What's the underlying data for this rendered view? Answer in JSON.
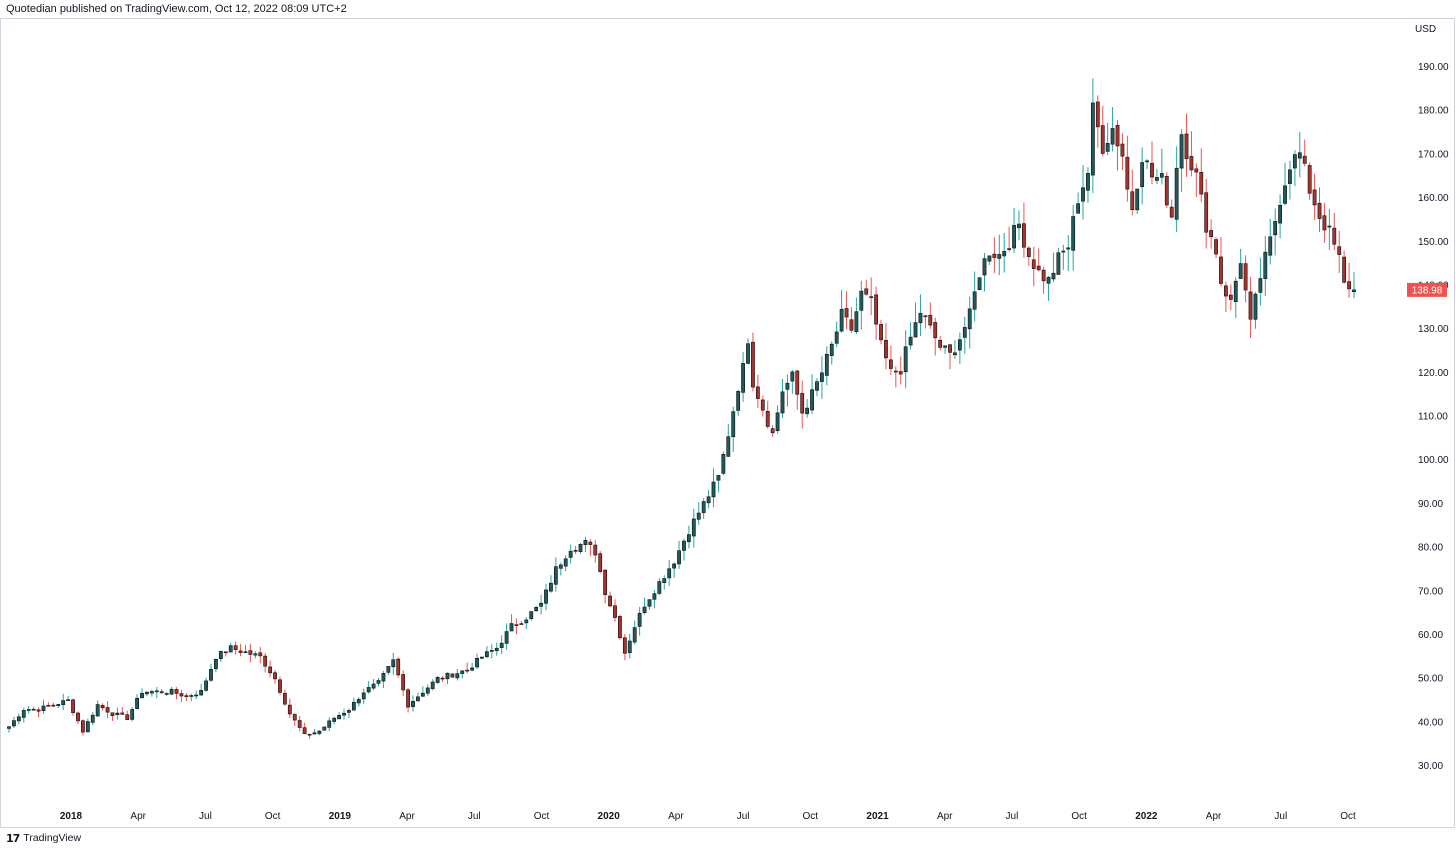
{
  "header": {
    "published_text": "Quotedian published on TradingView.com, Oct 12, 2022 08:09 UTC+2"
  },
  "footer": {
    "logo_icon": "tradingview-logo-icon",
    "logo_glyph": "17",
    "brand": "TradingView"
  },
  "colors": {
    "up": "#26a69a",
    "up_body": "#1e5a5e",
    "down": "#ef5350",
    "down_body": "#a8322d",
    "grid": "#ffffff",
    "axis_text": "#131722",
    "last_price_bg": "#ef5350"
  },
  "chart_data": {
    "type": "candlestick",
    "timeframe": "weekly",
    "currency": "USD",
    "y_axis_label": "USD",
    "y_ticks": [
      30,
      40,
      50,
      60,
      70,
      80,
      90,
      100,
      110,
      120,
      130,
      140,
      150,
      160,
      170,
      180,
      190
    ],
    "y_tick_labels": [
      "30.00",
      "40.00",
      "50.00",
      "60.00",
      "70.00",
      "80.00",
      "90.00",
      "100.00",
      "110.00",
      "120.00",
      "130.00",
      "140.00",
      "150.00",
      "160.00",
      "170.00",
      "180.00",
      "190.00"
    ],
    "ylim": [
      25,
      195
    ],
    "x_ticks": [
      {
        "label": "2018",
        "year": true,
        "w": 8
      },
      {
        "label": "Apr",
        "year": false,
        "w": 21
      },
      {
        "label": "Jul",
        "year": false,
        "w": 34
      },
      {
        "label": "Oct",
        "year": false,
        "w": 47
      },
      {
        "label": "2019",
        "year": true,
        "w": 60
      },
      {
        "label": "Apr",
        "year": false,
        "w": 73
      },
      {
        "label": "Jul",
        "year": false,
        "w": 86
      },
      {
        "label": "Oct",
        "year": false,
        "w": 99
      },
      {
        "label": "2020",
        "year": true,
        "w": 112
      },
      {
        "label": "Apr",
        "year": false,
        "w": 125
      },
      {
        "label": "Jul",
        "year": false,
        "w": 138
      },
      {
        "label": "Oct",
        "year": false,
        "w": 151
      },
      {
        "label": "2021",
        "year": true,
        "w": 164
      },
      {
        "label": "Apr",
        "year": false,
        "w": 177
      },
      {
        "label": "Jul",
        "year": false,
        "w": 190
      },
      {
        "label": "Oct",
        "year": false,
        "w": 203
      },
      {
        "label": "2022",
        "year": true,
        "w": 216
      },
      {
        "label": "Apr",
        "year": false,
        "w": 229
      },
      {
        "label": "Jul",
        "year": false,
        "w": 242
      },
      {
        "label": "Oct",
        "year": false,
        "w": 255
      }
    ],
    "close_path": [
      [
        0,
        39
      ],
      [
        3,
        43
      ],
      [
        6,
        43
      ],
      [
        9,
        44
      ],
      [
        12,
        45
      ],
      [
        15,
        38
      ],
      [
        18,
        44
      ],
      [
        21,
        42
      ],
      [
        24,
        41
      ],
      [
        27,
        47
      ],
      [
        30,
        47
      ],
      [
        33,
        47
      ],
      [
        36,
        46
      ],
      [
        39,
        47
      ],
      [
        42,
        55
      ],
      [
        45,
        57
      ],
      [
        48,
        56
      ],
      [
        51,
        55
      ],
      [
        54,
        50
      ],
      [
        57,
        42
      ],
      [
        60,
        37
      ],
      [
        63,
        38
      ],
      [
        66,
        41
      ],
      [
        69,
        43
      ],
      [
        72,
        47
      ],
      [
        75,
        49
      ],
      [
        78,
        54
      ],
      [
        81,
        44
      ],
      [
        84,
        47
      ],
      [
        87,
        50
      ],
      [
        90,
        51
      ],
      [
        93,
        52
      ],
      [
        96,
        55
      ],
      [
        99,
        57
      ],
      [
        102,
        62
      ],
      [
        105,
        64
      ],
      [
        108,
        67
      ],
      [
        111,
        75
      ],
      [
        114,
        80
      ],
      [
        117,
        81
      ],
      [
        119,
        79
      ],
      [
        121,
        70
      ],
      [
        123,
        64
      ],
      [
        125,
        56
      ],
      [
        127,
        62
      ],
      [
        129,
        67
      ],
      [
        132,
        72
      ],
      [
        135,
        77
      ],
      [
        138,
        84
      ],
      [
        141,
        90
      ],
      [
        144,
        96
      ],
      [
        146,
        106
      ],
      [
        148,
        117
      ],
      [
        149,
        121
      ],
      [
        150,
        128
      ],
      [
        151,
        118
      ],
      [
        153,
        112
      ],
      [
        155,
        106
      ],
      [
        157,
        116
      ],
      [
        159,
        119
      ],
      [
        161,
        111
      ],
      [
        163,
        115
      ],
      [
        165,
        120
      ],
      [
        167,
        126
      ],
      [
        169,
        133
      ],
      [
        171,
        130
      ],
      [
        173,
        138
      ],
      [
        175,
        136
      ],
      [
        177,
        126
      ],
      [
        179,
        120
      ],
      [
        181,
        121
      ],
      [
        183,
        128
      ],
      [
        185,
        134
      ],
      [
        187,
        130
      ],
      [
        189,
        126
      ],
      [
        191,
        124
      ],
      [
        193,
        128
      ],
      [
        195,
        133
      ],
      [
        197,
        143
      ],
      [
        199,
        148
      ],
      [
        201,
        147
      ],
      [
        203,
        150
      ],
      [
        205,
        154
      ],
      [
        207,
        147
      ],
      [
        209,
        143
      ],
      [
        211,
        141
      ],
      [
        213,
        146
      ],
      [
        215,
        149
      ],
      [
        217,
        160
      ],
      [
        219,
        166
      ],
      [
        220,
        180
      ],
      [
        222,
        172
      ],
      [
        224,
        176
      ],
      [
        226,
        170
      ],
      [
        227,
        162
      ],
      [
        228,
        158
      ],
      [
        230,
        170
      ],
      [
        232,
        165
      ],
      [
        234,
        164
      ],
      [
        236,
        156
      ],
      [
        237,
        168
      ],
      [
        238,
        175
      ],
      [
        239,
        171
      ],
      [
        241,
        165
      ],
      [
        243,
        154
      ],
      [
        245,
        148
      ],
      [
        246,
        141
      ],
      [
        248,
        136
      ],
      [
        250,
        146
      ],
      [
        252,
        131
      ],
      [
        254,
        142
      ],
      [
        256,
        150
      ],
      [
        258,
        160
      ],
      [
        260,
        168
      ],
      [
        262,
        170
      ],
      [
        264,
        162
      ],
      [
        266,
        156
      ],
      [
        268,
        152
      ],
      [
        270,
        146
      ],
      [
        271,
        140
      ],
      [
        272,
        140
      ],
      [
        273,
        139
      ]
    ],
    "vol_seed": 7,
    "last_price": 138.98,
    "last_price_label": "138.98",
    "last_price_color": "#ef5350"
  }
}
